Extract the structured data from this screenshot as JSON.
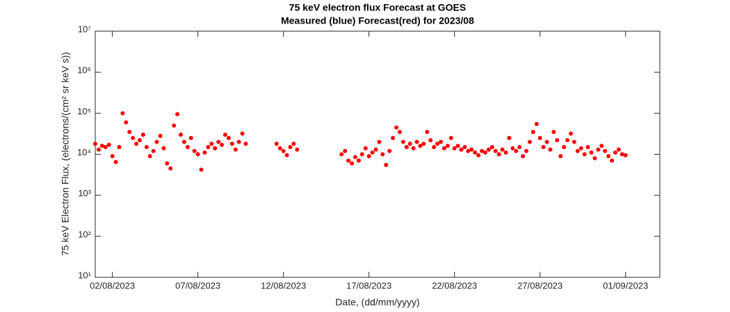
{
  "chart_data": {
    "type": "scatter",
    "title": "75 keV electron flux Forecast at GOES",
    "subtitle": "Measured (blue) Forecast(red) for 2023/08",
    "x_label": "Date, (dd/mm/yyyy)",
    "y_label": "75 keV Electron Flux, (electrons/(cm² sr keV s))",
    "log_y": true,
    "color": "#ff0000",
    "xlim": [
      1,
      34
    ],
    "xticks": [
      {
        "value": 2,
        "label": "02/08/2023"
      },
      {
        "value": 7,
        "label": "07/08/2023"
      },
      {
        "value": 12,
        "label": "12/08/2023"
      },
      {
        "value": 17,
        "label": "17/08/2023"
      },
      {
        "value": 22,
        "label": "22/08/2023"
      },
      {
        "value": 27,
        "label": "27/08/2023"
      },
      {
        "value": 32,
        "label": "01/09/2023"
      }
    ],
    "ylim": [
      10,
      10000000
    ],
    "yticks": [
      {
        "value": 10,
        "label": "10¹"
      },
      {
        "value": 100,
        "label": "10²"
      },
      {
        "value": 1000,
        "label": "10³"
      },
      {
        "value": 10000,
        "label": "10⁴"
      },
      {
        "value": 100000,
        "label": "10⁵"
      },
      {
        "value": 1000000,
        "label": "10⁶"
      },
      {
        "value": 10000000,
        "label": "10⁷"
      }
    ],
    "x": [
      1.0,
      1.2,
      1.4,
      1.6,
      1.8,
      2.0,
      2.2,
      2.4,
      2.6,
      2.8,
      3.0,
      3.2,
      3.4,
      3.6,
      3.8,
      4.0,
      4.2,
      4.4,
      4.6,
      4.8,
      5.0,
      5.2,
      5.4,
      5.6,
      5.8,
      6.0,
      6.2,
      6.4,
      6.6,
      6.8,
      7.0,
      7.2,
      7.4,
      7.6,
      7.8,
      8.0,
      8.2,
      8.4,
      8.6,
      8.8,
      9.0,
      9.2,
      9.4,
      9.6,
      9.8,
      11.6,
      11.8,
      12.0,
      12.2,
      12.4,
      12.6,
      12.8,
      15.4,
      15.6,
      15.8,
      16.0,
      16.2,
      16.4,
      16.6,
      16.8,
      17.0,
      17.2,
      17.4,
      17.6,
      17.8,
      18.0,
      18.2,
      18.4,
      18.6,
      18.8,
      19.0,
      19.2,
      19.4,
      19.6,
      19.8,
      20.0,
      20.2,
      20.4,
      20.6,
      20.8,
      21.0,
      21.2,
      21.4,
      21.6,
      21.8,
      22.0,
      22.2,
      22.4,
      22.6,
      22.8,
      23.0,
      23.2,
      23.4,
      23.6,
      23.8,
      24.0,
      24.2,
      24.4,
      24.6,
      24.8,
      25.0,
      25.2,
      25.4,
      25.6,
      25.8,
      26.0,
      26.2,
      26.4,
      26.6,
      26.8,
      27.0,
      27.2,
      27.4,
      27.6,
      27.8,
      28.0,
      28.2,
      28.4,
      28.6,
      28.8,
      29.0,
      29.2,
      29.4,
      29.6,
      29.8,
      30.0,
      30.2,
      30.4,
      30.6,
      30.8,
      31.0,
      31.2,
      31.4,
      31.6,
      31.8,
      32.0
    ],
    "values": [
      18000,
      13000,
      16000,
      15000,
      17000,
      9000,
      6500,
      15000,
      100000,
      60000,
      35000,
      25000,
      18000,
      22000,
      30000,
      15000,
      9000,
      12000,
      20000,
      28000,
      14000,
      6000,
      4500,
      50000,
      95000,
      30000,
      20000,
      15000,
      25000,
      12000,
      10000,
      4200,
      11000,
      15000,
      18000,
      14000,
      20000,
      17000,
      30000,
      25000,
      18000,
      13000,
      20000,
      32000,
      18000,
      18000,
      14000,
      12000,
      9500,
      15000,
      18000,
      13000,
      10000,
      12000,
      7000,
      6000,
      8500,
      7000,
      10000,
      14000,
      9000,
      11000,
      13000,
      20000,
      10000,
      5500,
      12000,
      25000,
      45000,
      35000,
      20000,
      15000,
      18000,
      14000,
      20000,
      16000,
      18000,
      35000,
      22000,
      15000,
      18000,
      20000,
      14000,
      16000,
      25000,
      14000,
      16000,
      13000,
      15000,
      12000,
      13000,
      11000,
      9500,
      12000,
      11000,
      13000,
      15000,
      12000,
      10000,
      13000,
      11000,
      25000,
      14000,
      12000,
      15000,
      9000,
      12000,
      20000,
      35000,
      55000,
      25000,
      15000,
      20000,
      13000,
      35000,
      22000,
      9000,
      15000,
      22000,
      32000,
      20000,
      12000,
      14000,
      10000,
      15000,
      11000,
      8000,
      13000,
      16000,
      12000,
      9000,
      7000,
      11000,
      13000,
      10000,
      9500
    ]
  }
}
